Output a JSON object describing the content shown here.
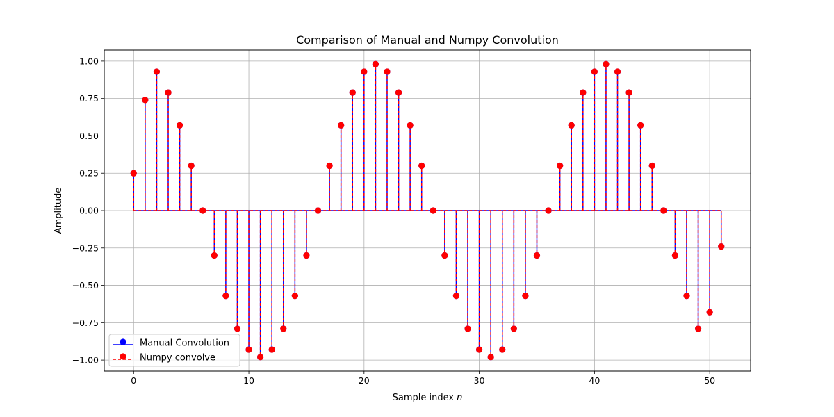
{
  "chart_data": {
    "type": "stem",
    "title": "Comparison of Manual and Numpy Convolution",
    "xlabel": "Sample index",
    "xlabel_var": "n",
    "ylabel": "Amplitude",
    "xlim": [
      -2.55,
      53.55
    ],
    "ylim": [
      -1.0739,
      1.0739
    ],
    "xticks": [
      0,
      10,
      20,
      30,
      40,
      50
    ],
    "yticks": [
      -1.0,
      -0.75,
      -0.5,
      -0.25,
      0.0,
      0.25,
      0.5,
      0.75,
      1.0
    ],
    "ytick_labels": [
      "−1.00",
      "−0.75",
      "−0.50",
      "−0.25",
      "0.00",
      "0.25",
      "0.50",
      "0.75",
      "1.00"
    ],
    "grid": true,
    "legend_position": "lower-left",
    "x": [
      0,
      1,
      2,
      3,
      4,
      5,
      6,
      7,
      8,
      9,
      10,
      11,
      12,
      13,
      14,
      15,
      16,
      17,
      18,
      19,
      20,
      21,
      22,
      23,
      24,
      25,
      26,
      27,
      28,
      29,
      30,
      31,
      32,
      33,
      34,
      35,
      36,
      37,
      38,
      39,
      40,
      41,
      42,
      43,
      44,
      45,
      46,
      47,
      48,
      49,
      50,
      51
    ],
    "series": [
      {
        "name": "Manual Convolution",
        "color": "#0000ff",
        "linestyle": "solid",
        "values": [
          0.25,
          0.74,
          0.93,
          0.79,
          0.57,
          0.3,
          0.0,
          -0.3,
          -0.57,
          -0.79,
          -0.93,
          -0.98,
          -0.93,
          -0.79,
          -0.57,
          -0.3,
          0.0,
          0.3,
          0.57,
          0.79,
          0.93,
          0.98,
          0.93,
          0.79,
          0.57,
          0.3,
          0.0,
          -0.3,
          -0.57,
          -0.79,
          -0.93,
          -0.98,
          -0.93,
          -0.79,
          -0.57,
          -0.3,
          0.0,
          0.3,
          0.57,
          0.79,
          0.93,
          0.98,
          0.93,
          0.79,
          0.57,
          0.3,
          0.0,
          -0.3,
          -0.57,
          -0.79,
          -0.68,
          -0.24
        ]
      },
      {
        "name": "Numpy convolve",
        "color": "#ff0000",
        "linestyle": "dashed",
        "values": [
          0.25,
          0.74,
          0.93,
          0.79,
          0.57,
          0.3,
          0.0,
          -0.3,
          -0.57,
          -0.79,
          -0.93,
          -0.98,
          -0.93,
          -0.79,
          -0.57,
          -0.3,
          0.0,
          0.3,
          0.57,
          0.79,
          0.93,
          0.98,
          0.93,
          0.79,
          0.57,
          0.3,
          0.0,
          -0.3,
          -0.57,
          -0.79,
          -0.93,
          -0.98,
          -0.93,
          -0.79,
          -0.57,
          -0.3,
          0.0,
          0.3,
          0.57,
          0.79,
          0.93,
          0.98,
          0.93,
          0.79,
          0.57,
          0.3,
          0.0,
          -0.3,
          -0.57,
          -0.79,
          -0.68,
          -0.24
        ]
      }
    ]
  }
}
